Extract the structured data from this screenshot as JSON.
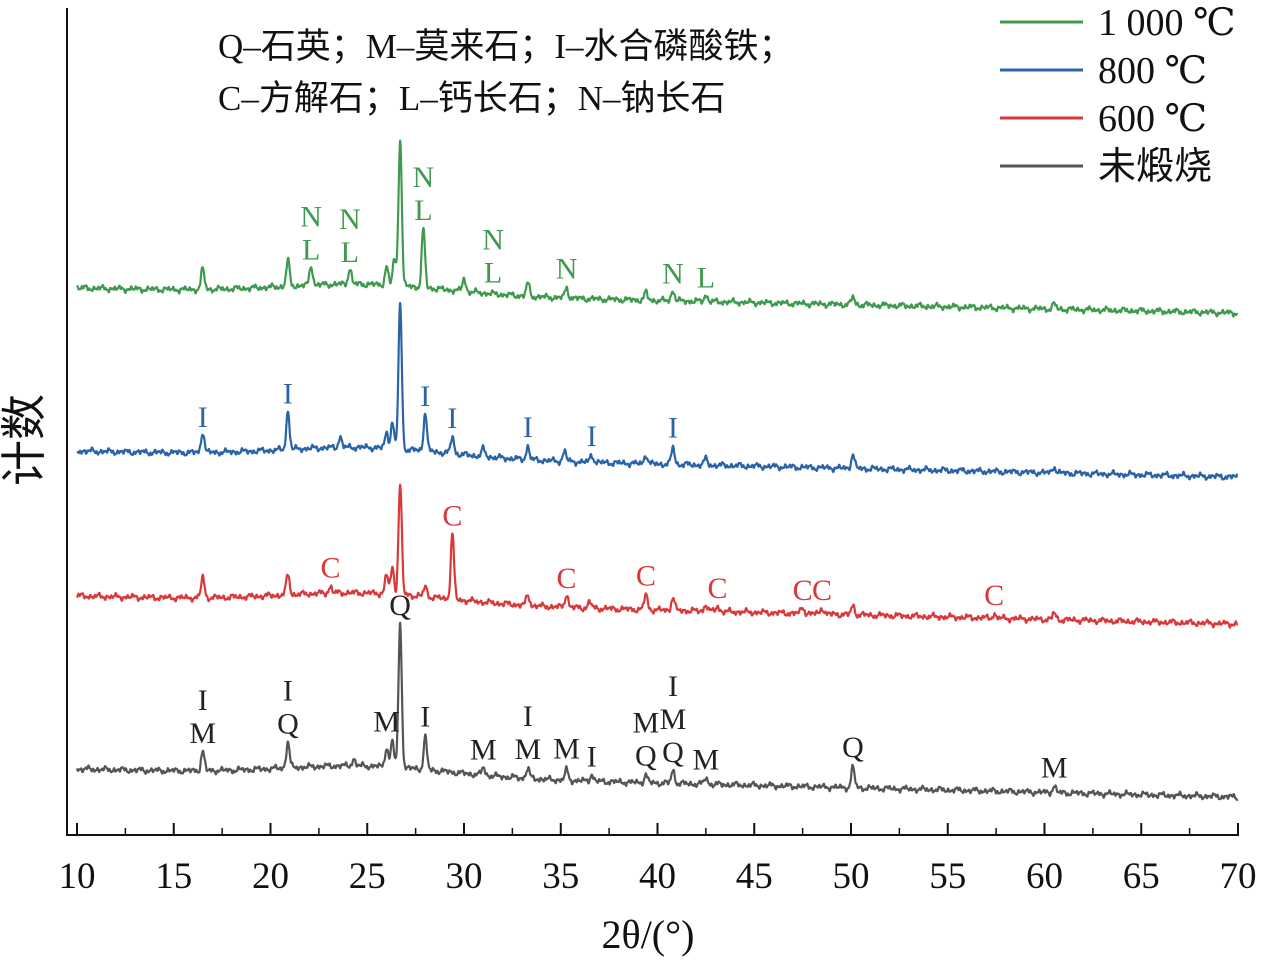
{
  "chart_data": {
    "type": "line",
    "xlabel": "2θ/(°)",
    "ylabel": "计数",
    "xlim": [
      10,
      70
    ],
    "x_ticks": [
      "10",
      "15",
      "20",
      "25",
      "30",
      "35",
      "40",
      "45",
      "50",
      "55",
      "60",
      "65",
      "70"
    ],
    "annotation_text": [
      "Q–石英；M–莫来石；I–水合磷酸铁；",
      "C–方解石；L–钙长石；N–钠长石"
    ],
    "legend": {
      "placement": "top-right",
      "entries": [
        {
          "name": "1 000 ℃",
          "color": "#3f9a4f"
        },
        {
          "name": "800 ℃",
          "color": "#2a63a8"
        },
        {
          "name": "600 ℃",
          "color": "#d9393a"
        },
        {
          "name": "未煅烧",
          "color": "#555555"
        }
      ]
    },
    "series": [
      {
        "name": "1 000 ℃",
        "color": "#3f9a4f",
        "baseline_start": 0.84,
        "baseline_end": 0.72,
        "peaks": [
          [
            16.5,
            0.16
          ],
          [
            20.9,
            0.2
          ],
          [
            22.1,
            0.15
          ],
          [
            24.1,
            0.12
          ],
          [
            26.0,
            0.14
          ],
          [
            26.4,
            0.2
          ],
          [
            26.7,
            1.13
          ],
          [
            27.9,
            0.45
          ],
          [
            30.0,
            0.1
          ],
          [
            33.3,
            0.1
          ],
          [
            35.3,
            0.08
          ],
          [
            39.4,
            0.06
          ],
          [
            40.8,
            0.08
          ],
          [
            42.5,
            0.05
          ],
          [
            50.1,
            0.06
          ],
          [
            60.5,
            0.04
          ]
        ],
        "labels": [
          [
            "N",
            22.1
          ],
          [
            "L",
            22.1
          ],
          [
            "N",
            24.1
          ],
          [
            "L",
            24.1
          ],
          [
            "N",
            27.9
          ],
          [
            "L",
            27.9
          ],
          [
            "N",
            31.5
          ],
          [
            "L",
            31.5
          ],
          [
            "N",
            35.3
          ],
          [
            "N",
            40.8
          ],
          [
            "L",
            42.5
          ]
        ]
      },
      {
        "name": "800 ℃",
        "color": "#2a63a8",
        "baseline_start": 0.84,
        "baseline_end": 0.72,
        "peaks": [
          [
            16.5,
            0.16
          ],
          [
            20.9,
            0.29
          ],
          [
            23.6,
            0.08
          ],
          [
            26.0,
            0.12
          ],
          [
            26.3,
            0.2
          ],
          [
            26.7,
            1.12
          ],
          [
            28.0,
            0.3
          ],
          [
            29.4,
            0.13
          ],
          [
            31.0,
            0.06
          ],
          [
            33.3,
            0.1
          ],
          [
            35.2,
            0.08
          ],
          [
            36.6,
            0.06
          ],
          [
            39.4,
            0.07
          ],
          [
            40.8,
            0.13
          ],
          [
            42.5,
            0.05
          ],
          [
            50.1,
            0.11
          ],
          [
            60.5,
            0.05
          ]
        ],
        "labels": [
          [
            "I",
            16.5
          ],
          [
            "I",
            20.9
          ],
          [
            "I",
            28.0
          ],
          [
            "I",
            29.4
          ],
          [
            "I",
            33.3
          ],
          [
            "I",
            36.6
          ],
          [
            "I",
            40.8
          ]
        ]
      },
      {
        "name": "600 ℃",
        "color": "#d9393a",
        "baseline_start": 0.84,
        "baseline_end": 0.72,
        "peaks": [
          [
            16.5,
            0.16
          ],
          [
            20.9,
            0.16
          ],
          [
            23.1,
            0.05
          ],
          [
            26.0,
            0.15
          ],
          [
            26.3,
            0.2
          ],
          [
            26.7,
            0.85
          ],
          [
            28.0,
            0.08
          ],
          [
            29.4,
            0.5
          ],
          [
            33.3,
            0.08
          ],
          [
            35.3,
            0.1
          ],
          [
            36.5,
            0.05
          ],
          [
            39.4,
            0.12
          ],
          [
            40.8,
            0.1
          ],
          [
            42.5,
            0.05
          ],
          [
            43.1,
            0.04
          ],
          [
            47.5,
            0.05
          ],
          [
            48.5,
            0.05
          ],
          [
            50.1,
            0.07
          ],
          [
            57.4,
            0.03
          ],
          [
            60.5,
            0.05
          ]
        ],
        "labels": [
          [
            "C",
            23.1
          ],
          [
            "C",
            29.4
          ],
          [
            "C",
            35.3
          ],
          [
            "C",
            39.4
          ],
          [
            "C",
            43.1
          ],
          [
            "C",
            47.5
          ],
          [
            "C",
            48.5
          ],
          [
            "C",
            57.4
          ]
        ]
      },
      {
        "name": "未煅烧",
        "color": "#555555",
        "baseline_start": 0.84,
        "baseline_end": 0.72,
        "peaks": [
          [
            16.5,
            0.15
          ],
          [
            20.9,
            0.2
          ],
          [
            24.3,
            0.05
          ],
          [
            26.0,
            0.15
          ],
          [
            26.3,
            0.2
          ],
          [
            26.7,
            1.1
          ],
          [
            28.0,
            0.25
          ],
          [
            31.0,
            0.06
          ],
          [
            33.3,
            0.08
          ],
          [
            35.3,
            0.08
          ],
          [
            36.6,
            0.05
          ],
          [
            39.4,
            0.06
          ],
          [
            40.8,
            0.1
          ],
          [
            42.5,
            0.05
          ],
          [
            50.1,
            0.16
          ],
          [
            60.5,
            0.05
          ]
        ],
        "labels": [
          [
            "I",
            16.5
          ],
          [
            "M",
            16.5
          ],
          [
            "I",
            20.9
          ],
          [
            "Q",
            20.9
          ],
          [
            "M",
            26.0
          ],
          [
            "Q",
            26.7
          ],
          [
            "I",
            28.0
          ],
          [
            "M",
            31.0
          ],
          [
            "I",
            33.3
          ],
          [
            "M",
            33.3
          ],
          [
            "M",
            35.3
          ],
          [
            "I",
            36.6
          ],
          [
            "M",
            39.4
          ],
          [
            "Q",
            39.4
          ],
          [
            "I",
            40.8
          ],
          [
            "M",
            40.8
          ],
          [
            "Q",
            40.8
          ],
          [
            "M",
            42.5
          ],
          [
            "Q",
            50.1
          ],
          [
            "M",
            60.5
          ]
        ]
      }
    ]
  }
}
